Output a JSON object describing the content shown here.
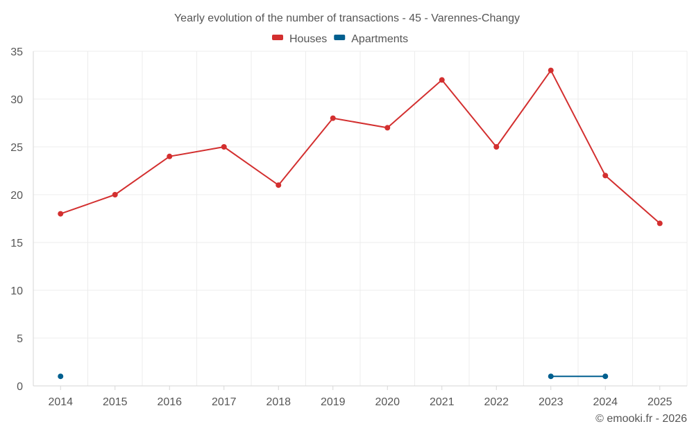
{
  "chart_data": {
    "type": "line",
    "title": "Yearly evolution of the number of transactions - 45 - Varennes-Changy",
    "categories": [
      "2014",
      "2015",
      "2016",
      "2017",
      "2018",
      "2019",
      "2020",
      "2021",
      "2022",
      "2023",
      "2024",
      "2025"
    ],
    "series": [
      {
        "name": "Houses",
        "color": "#d32f2f",
        "values": [
          18,
          20,
          24,
          25,
          21,
          28,
          27,
          32,
          25,
          33,
          22,
          17
        ]
      },
      {
        "name": "Apartments",
        "color": "#005f8f",
        "values": [
          1,
          null,
          null,
          null,
          null,
          null,
          null,
          null,
          null,
          1,
          1,
          null
        ]
      }
    ],
    "ylim": [
      0,
      35
    ],
    "yticks": [
      0,
      5,
      10,
      15,
      20,
      25,
      30,
      35
    ],
    "xlabel": "",
    "ylabel": "",
    "legend_position": "top-center",
    "grid": true
  },
  "credit": "© emooki.fr - 2026"
}
